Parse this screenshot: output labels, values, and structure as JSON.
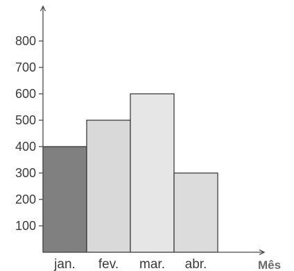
{
  "chart_data": {
    "type": "bar",
    "title": "",
    "xlabel": "Mês",
    "ylabel": "",
    "categories": [
      "jan.",
      "fev.",
      "mar.",
      "abr."
    ],
    "values": [
      400,
      500,
      600,
      300
    ],
    "ylim": [
      0,
      800
    ],
    "yticks": [
      "100",
      "200",
      "300",
      "400",
      "500",
      "600",
      "700",
      "800"
    ],
    "grid": false,
    "legend": "none",
    "colors": {
      "bars": [
        "#808080",
        "#d9d9d9",
        "#e6e6e6",
        "#dcdcdc"
      ],
      "axis": "#4a4a4a",
      "text": "#3a3a3a"
    }
  }
}
